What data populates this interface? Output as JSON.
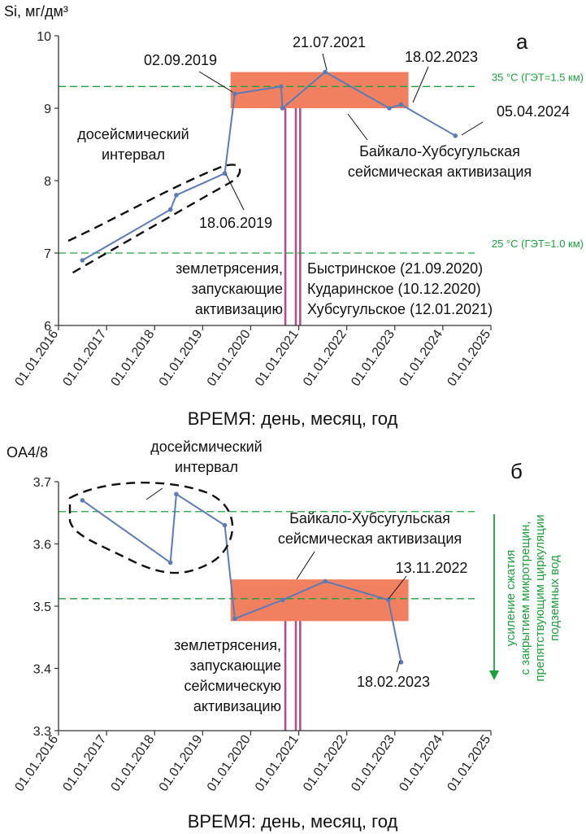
{
  "chart_data": [
    {
      "type": "line",
      "panel_label": "а",
      "ylabel": "Si, мг/дм³",
      "xlabel": "ВРЕМЯ: день, месяц, год",
      "ylim": [
        6,
        10
      ],
      "yticks": [
        "6",
        "7",
        "8",
        "9",
        "10"
      ],
      "xticks": [
        "01.01.2016",
        "01.01.2017",
        "01.01.2018",
        "01.01.2019",
        "01.01.2020",
        "01.01.2021",
        "01.01.2022",
        "01.01.2023",
        "01.01.2024",
        "01.01.2025"
      ],
      "series": [
        {
          "color": "#5b7bb8",
          "points": [
            {
              "x": "2016-07-01",
              "y": 6.9
            },
            {
              "x": "2018-05-01",
              "y": 7.6
            },
            {
              "x": "2018-06-15",
              "y": 7.8
            },
            {
              "x": "2019-06-18",
              "y": 8.1
            },
            {
              "x": "2019-09-02",
              "y": 9.2
            },
            {
              "x": "2020-08-20",
              "y": 9.3
            },
            {
              "x": "2020-08-30",
              "y": 9.0
            },
            {
              "x": "2021-07-21",
              "y": 9.5
            },
            {
              "x": "2022-11-20",
              "y": 9.0
            },
            {
              "x": "2023-02-18",
              "y": 9.05
            },
            {
              "x": "2024-04-05",
              "y": 8.62
            }
          ]
        }
      ],
      "threshold_lines": [
        {
          "y": 9.3,
          "label": "35 °C (ГЭТ=1.5 км)",
          "color": "#1aa33a"
        },
        {
          "y": 7.0,
          "label": "25 °C (ГЭТ=1.0 км)",
          "color": "#1aa33a"
        }
      ],
      "activation_box": {
        "x_start": "2019-08-01",
        "x_end": "2023-04-15",
        "y_low": 9.0,
        "y_high": 9.5,
        "color": "#f08060"
      },
      "earthquake_lines": {
        "dates": [
          "2020-09-21",
          "2020-12-10",
          "2021-01-12"
        ],
        "color": "#b0508a"
      },
      "annotations": {
        "d1": "02.09.2019",
        "d2": "21.07.2021",
        "d3": "18.02.2023",
        "d4": "05.04.2024",
        "d5": "18.06.2019",
        "pre1": "досейсмический",
        "pre2": "интервал",
        "act1": "Байкало-Хубсугульская",
        "act2": "сейсмическая активизация",
        "quake1": "землетрясения,",
        "quake2": "запускающие",
        "quake3": "активизацию",
        "eq1": "Быстринское (21.09.2020)",
        "eq2": "Кударинское (10.12.2020)",
        "eq3": "Хубсугульское (12.01.2021)"
      }
    },
    {
      "type": "line",
      "panel_label": "б",
      "ylabel": "OA4/8",
      "xlabel": "ВРЕМЯ: день, месяц, год",
      "ylim": [
        3.3,
        3.7
      ],
      "yticks": [
        "3.3",
        "3.4",
        "3.5",
        "3.6",
        "3.7"
      ],
      "xticks": [
        "01.01.2016",
        "01.01.2017",
        "01.01.2018",
        "01.01.2019",
        "01.01.2020",
        "01.01.2021",
        "01.01.2022",
        "01.01.2023",
        "01.01.2024",
        "01.01.2025"
      ],
      "series": [
        {
          "color": "#5b7bb8",
          "points": [
            {
              "x": "2016-07-01",
              "y": 3.67
            },
            {
              "x": "2018-05-01",
              "y": 3.57
            },
            {
              "x": "2018-06-15",
              "y": 3.68
            },
            {
              "x": "2019-06-18",
              "y": 3.63
            },
            {
              "x": "2019-09-02",
              "y": 3.48
            },
            {
              "x": "2020-09-01",
              "y": 3.51
            },
            {
              "x": "2021-07-21",
              "y": 3.54
            },
            {
              "x": "2022-11-13",
              "y": 3.51
            },
            {
              "x": "2023-02-18",
              "y": 3.41
            }
          ]
        }
      ],
      "threshold_lines": [
        {
          "y": 3.652,
          "color": "#1aa33a"
        },
        {
          "y": 3.512,
          "color": "#1aa33a"
        }
      ],
      "activation_box": {
        "x_start": "2019-08-01",
        "x_end": "2023-04-15",
        "y_low": 3.476,
        "y_high": 3.543,
        "color": "#f08060"
      },
      "earthquake_lines": {
        "dates": [
          "2020-09-21",
          "2020-12-10",
          "2021-01-12"
        ],
        "color": "#b0508a"
      },
      "annotations": {
        "d1": "13.11.2022",
        "d2": "18.02.2023",
        "pre1": "досейсмический",
        "pre2": "интервал",
        "act1": "Байкало-Хубсугульская",
        "act2": "сейсмическая активизация",
        "quake1": "землетрясения,",
        "quake2": "запускающие",
        "quake3": "сейсмическую",
        "quake4": "активизацию",
        "side1": "усиление сжатия",
        "side2": "с закрытием микротрещин,",
        "side3": "препятствующим циркуляции",
        "side4": "подземных вод"
      }
    }
  ]
}
